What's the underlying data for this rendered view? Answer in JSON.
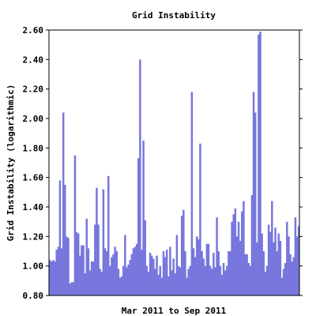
{
  "chart_data": {
    "type": "bar",
    "title": "Grid Instability",
    "xlabel": "Mar 2011 to Sep 2011",
    "ylabel": "Grid Instability (logarithmic)",
    "ylim": [
      0.8,
      2.6
    ],
    "yticks": [
      0.8,
      1.0,
      1.2,
      1.4,
      1.6,
      1.8,
      2.0,
      2.2,
      2.4,
      2.6
    ],
    "ytick_labels": [
      "0.80",
      "1.00",
      "1.20",
      "1.40",
      "1.60",
      "1.80",
      "2.00",
      "2.20",
      "2.40",
      "2.60"
    ],
    "grid": false,
    "bar_color": "#7777dd",
    "values": [
      1.04,
      1.03,
      1.04,
      1.03,
      1.11,
      1.13,
      1.58,
      1.12,
      2.04,
      1.55,
      1.2,
      1.19,
      0.88,
      0.89,
      0.89,
      1.75,
      1.23,
      1.22,
      1.07,
      1.14,
      1.14,
      0.95,
      1.32,
      1.12,
      0.97,
      1.03,
      1.03,
      1.28,
      1.53,
      1.28,
      0.98,
      0.96,
      1.52,
      1.12,
      1.1,
      1.61,
      1.0,
      1.06,
      1.08,
      1.13,
      1.1,
      0.98,
      0.92,
      0.93,
      1.0,
      1.21,
      0.99,
      1.01,
      1.04,
      1.08,
      1.12,
      1.13,
      1.15,
      1.73,
      2.4,
      1.11,
      1.85,
      1.31,
      1.0,
      0.96,
      1.09,
      1.07,
      1.05,
      0.98,
      1.07,
      0.94,
      1.0,
      0.92,
      1.1,
      1.06,
      1.11,
      0.93,
      1.13,
      0.97,
      1.05,
      0.95,
      1.21,
      1.0,
      0.99,
      1.34,
      1.38,
      1.1,
      0.92,
      0.98,
      1.0,
      2.18,
      1.12,
      1.06,
      1.2,
      1.18,
      1.83,
      1.1,
      1.05,
      1.0,
      1.15,
      1.15,
      1.0,
      0.98,
      1.09,
      0.99,
      1.33,
      1.1,
      1.0,
      0.94,
      1.02,
      0.97,
      1.0,
      1.1,
      1.1,
      1.3,
      1.35,
      1.39,
      1.2,
      1.3,
      1.17,
      1.37,
      1.44,
      1.08,
      1.08,
      1.02,
      1.0,
      1.48,
      2.18,
      2.04,
      1.16,
      2.57,
      2.59,
      1.22,
      1.1,
      0.96,
      1.0,
      1.28,
      1.23,
      1.44,
      1.16,
      1.26,
      1.1,
      1.22,
      1.17,
      0.92,
      0.98,
      1.02,
      1.3,
      1.2,
      1.08,
      1.03,
      1.06,
      1.33,
      1.2,
      1.27
    ]
  }
}
